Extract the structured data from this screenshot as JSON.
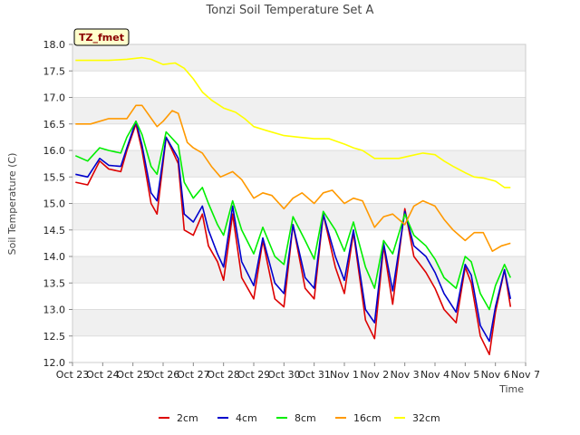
{
  "chart_data": {
    "type": "line",
    "title": "Tonzi Soil Temperature Set A",
    "xlabel": "Time",
    "ylabel": "Soil Temperature (C)",
    "badge": "TZ_fmet",
    "xlim": [
      0,
      15
    ],
    "ylim": [
      12.0,
      18.0
    ],
    "xticks": [
      0,
      1,
      2,
      3,
      4,
      5,
      6,
      7,
      8,
      9,
      10,
      11,
      12,
      13,
      14,
      15
    ],
    "xtick_labels": [
      "Oct 23",
      "Oct 24",
      "Oct 25",
      "Oct 26",
      "Oct 27",
      "Oct 28",
      "Oct 29",
      "Oct 30",
      "Oct 31",
      "Nov 1",
      "Nov 2",
      "Nov 3",
      "Nov 4",
      "Nov 5",
      "Nov 6",
      "Nov 7"
    ],
    "yticks": [
      12.0,
      12.5,
      13.0,
      13.5,
      14.0,
      14.5,
      15.0,
      15.5,
      16.0,
      16.5,
      17.0,
      17.5,
      18.0
    ],
    "ytick_labels": [
      "12.0",
      "12.5",
      "13.0",
      "13.5",
      "14.0",
      "14.5",
      "15.0",
      "15.5",
      "16.0",
      "16.5",
      "17.0",
      "17.5",
      "18.0"
    ],
    "legend_position": "bottom-center",
    "series": [
      {
        "name": "2cm",
        "color": "#dd0000",
        "x": [
          0.1,
          0.5,
          0.9,
          1.2,
          1.6,
          1.8,
          2.1,
          2.3,
          2.6,
          2.8,
          3.1,
          3.5,
          3.7,
          4.0,
          4.3,
          4.5,
          4.8,
          5.0,
          5.3,
          5.6,
          6.0,
          6.3,
          6.7,
          7.0,
          7.3,
          7.7,
          8.0,
          8.3,
          8.7,
          9.0,
          9.3,
          9.7,
          10.0,
          10.3,
          10.6,
          11.0,
          11.3,
          11.7,
          12.0,
          12.3,
          12.7,
          13.0,
          13.2,
          13.5,
          13.8,
          14.0,
          14.3,
          14.5
        ],
        "y": [
          15.4,
          15.35,
          15.8,
          15.65,
          15.6,
          16.0,
          16.5,
          16.0,
          15.0,
          14.8,
          16.25,
          15.75,
          14.5,
          14.4,
          14.8,
          14.2,
          13.9,
          13.55,
          14.8,
          13.6,
          13.2,
          14.3,
          13.2,
          13.05,
          14.6,
          13.4,
          13.2,
          14.8,
          13.8,
          13.3,
          14.45,
          12.8,
          12.45,
          14.2,
          13.1,
          14.9,
          14.0,
          13.7,
          13.4,
          13.0,
          12.75,
          13.8,
          13.5,
          12.5,
          12.15,
          12.95,
          13.75,
          13.05
        ]
      },
      {
        "name": "4cm",
        "color": "#0000cc",
        "x": [
          0.1,
          0.5,
          0.9,
          1.2,
          1.6,
          1.8,
          2.1,
          2.3,
          2.6,
          2.8,
          3.1,
          3.5,
          3.7,
          4.0,
          4.3,
          4.5,
          4.8,
          5.0,
          5.3,
          5.6,
          6.0,
          6.3,
          6.7,
          7.0,
          7.3,
          7.7,
          8.0,
          8.3,
          8.7,
          9.0,
          9.3,
          9.7,
          10.0,
          10.3,
          10.6,
          11.0,
          11.3,
          11.7,
          12.0,
          12.3,
          12.7,
          13.0,
          13.2,
          13.5,
          13.8,
          14.0,
          14.3,
          14.5
        ],
        "y": [
          15.55,
          15.5,
          15.85,
          15.72,
          15.7,
          16.05,
          16.55,
          16.1,
          15.2,
          15.05,
          16.25,
          15.85,
          14.8,
          14.65,
          14.95,
          14.5,
          14.05,
          13.8,
          14.95,
          13.9,
          13.45,
          14.35,
          13.5,
          13.3,
          14.6,
          13.6,
          13.4,
          14.8,
          14.0,
          13.55,
          14.5,
          13.0,
          12.75,
          14.25,
          13.35,
          14.85,
          14.2,
          14.0,
          13.7,
          13.3,
          12.95,
          13.85,
          13.65,
          12.7,
          12.4,
          13.05,
          13.75,
          13.2
        ]
      },
      {
        "name": "8cm",
        "color": "#00ee00",
        "x": [
          0.1,
          0.5,
          0.9,
          1.2,
          1.6,
          1.8,
          2.1,
          2.3,
          2.6,
          2.8,
          3.1,
          3.5,
          3.7,
          4.0,
          4.3,
          4.5,
          4.8,
          5.0,
          5.3,
          5.6,
          6.0,
          6.3,
          6.7,
          7.0,
          7.3,
          7.7,
          8.0,
          8.3,
          8.7,
          9.0,
          9.3,
          9.7,
          10.0,
          10.3,
          10.6,
          11.0,
          11.3,
          11.7,
          12.0,
          12.3,
          12.7,
          13.0,
          13.2,
          13.5,
          13.8,
          14.0,
          14.3,
          14.5
        ],
        "y": [
          15.9,
          15.8,
          16.05,
          16.0,
          15.95,
          16.25,
          16.55,
          16.3,
          15.7,
          15.55,
          16.35,
          16.1,
          15.4,
          15.1,
          15.3,
          15.0,
          14.6,
          14.4,
          15.05,
          14.5,
          14.05,
          14.55,
          14.0,
          13.85,
          14.75,
          14.3,
          13.95,
          14.85,
          14.5,
          14.1,
          14.65,
          13.8,
          13.4,
          14.3,
          14.05,
          14.8,
          14.4,
          14.2,
          13.95,
          13.6,
          13.4,
          14.0,
          13.9,
          13.3,
          13.0,
          13.45,
          13.85,
          13.6
        ]
      },
      {
        "name": "16cm",
        "color": "#ff9900",
        "x": [
          0.1,
          0.6,
          1.2,
          1.8,
          2.1,
          2.3,
          2.8,
          3.0,
          3.3,
          3.5,
          3.8,
          4.0,
          4.3,
          4.6,
          4.9,
          5.3,
          5.6,
          6.0,
          6.3,
          6.6,
          7.0,
          7.3,
          7.6,
          8.0,
          8.3,
          8.6,
          9.0,
          9.3,
          9.6,
          10.0,
          10.3,
          10.6,
          11.0,
          11.3,
          11.6,
          12.0,
          12.3,
          12.6,
          13.0,
          13.3,
          13.6,
          13.9,
          14.2,
          14.5
        ],
        "y": [
          16.5,
          16.5,
          16.6,
          16.6,
          16.85,
          16.85,
          16.45,
          16.55,
          16.75,
          16.7,
          16.15,
          16.05,
          15.95,
          15.7,
          15.5,
          15.6,
          15.45,
          15.1,
          15.2,
          15.15,
          14.9,
          15.1,
          15.2,
          15.0,
          15.2,
          15.25,
          15.0,
          15.1,
          15.05,
          14.55,
          14.75,
          14.8,
          14.6,
          14.95,
          15.05,
          14.95,
          14.7,
          14.5,
          14.3,
          14.45,
          14.45,
          14.1,
          14.2,
          14.25
        ]
      },
      {
        "name": "32cm",
        "color": "#ffff00",
        "x": [
          0.1,
          0.6,
          1.2,
          1.8,
          2.3,
          2.6,
          3.0,
          3.4,
          3.7,
          4.0,
          4.3,
          4.6,
          5.0,
          5.4,
          5.7,
          6.0,
          6.4,
          7.0,
          7.5,
          8.0,
          8.5,
          9.0,
          9.3,
          9.6,
          10.0,
          10.4,
          10.8,
          11.2,
          11.6,
          12.0,
          12.3,
          12.6,
          13.0,
          13.3,
          13.6,
          14.0,
          14.3,
          14.5
        ],
        "y": [
          17.7,
          17.7,
          17.7,
          17.72,
          17.75,
          17.72,
          17.62,
          17.65,
          17.55,
          17.35,
          17.1,
          16.95,
          16.8,
          16.72,
          16.6,
          16.45,
          16.38,
          16.28,
          16.25,
          16.22,
          16.22,
          16.12,
          16.05,
          16.0,
          15.85,
          15.85,
          15.85,
          15.9,
          15.95,
          15.92,
          15.8,
          15.7,
          15.58,
          15.5,
          15.48,
          15.42,
          15.3,
          15.3
        ]
      }
    ]
  }
}
